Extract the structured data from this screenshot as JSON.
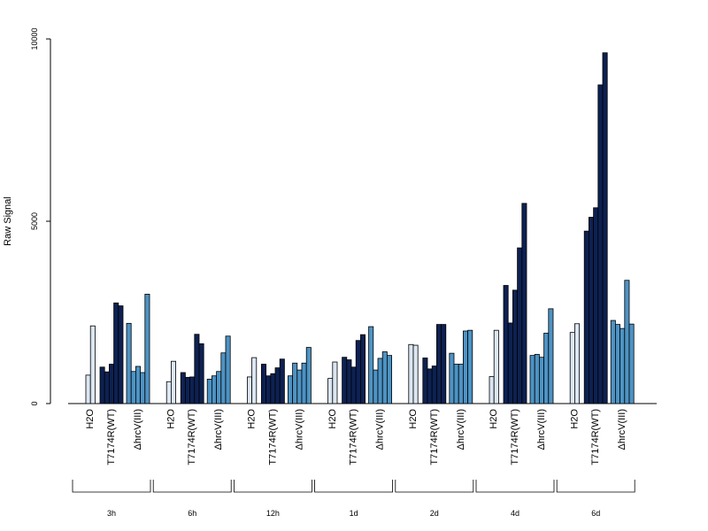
{
  "chart_data": {
    "type": "bar",
    "ylabel": "Raw Signal",
    "xlabel": "",
    "ylim": [
      0,
      10000
    ],
    "yticks": [
      0,
      5000,
      10000
    ],
    "timepoints": [
      "3h",
      "6h",
      "12h",
      "1d",
      "2d",
      "4d",
      "6d"
    ],
    "conditions": [
      {
        "name": "H2O",
        "color": "#dbe6f3"
      },
      {
        "name": "T7174R(WT)",
        "color": "#0d2152"
      },
      {
        "name": "ΔhrcV(III)",
        "color": "#4d93c4"
      }
    ],
    "groups": [
      {
        "time": "3h",
        "H2O": [
          780,
          2130
        ],
        "T7174R(WT)": [
          1000,
          870,
          1080,
          2760,
          2680
        ],
        "ΔhrcV(III)": [
          2200,
          880,
          1020,
          850,
          3000
        ]
      },
      {
        "time": "6h",
        "H2O": [
          600,
          1160
        ],
        "T7174R(WT)": [
          850,
          720,
          730,
          1900,
          1640
        ],
        "ΔhrcV(III)": [
          670,
          760,
          880,
          1390,
          1850
        ]
      },
      {
        "time": "12h",
        "H2O": [
          730,
          1260
        ],
        "T7174R(WT)": [
          1080,
          760,
          820,
          980,
          1220
        ],
        "ΔhrcV(III)": [
          760,
          1110,
          920,
          1110,
          1540
        ]
      },
      {
        "time": "1d",
        "H2O": [
          690,
          1140
        ],
        "T7174R(WT)": [
          1270,
          1200,
          1000,
          1730,
          1890
        ],
        "ΔhrcV(III)": [
          2110,
          920,
          1240,
          1420,
          1320
        ]
      },
      {
        "time": "2d",
        "H2O": [
          1620,
          1600
        ],
        "T7174R(WT)": [
          1250,
          950,
          1030,
          2170,
          2170
        ],
        "ΔhrcV(III)": [
          1380,
          1080,
          1080,
          1990,
          2010
        ]
      },
      {
        "time": "4d",
        "H2O": [
          740,
          2010
        ],
        "T7174R(WT)": [
          3240,
          2210,
          3110,
          4270,
          5490
        ],
        "ΔhrcV(III)": [
          1320,
          1350,
          1270,
          1930,
          2600
        ]
      },
      {
        "time": "6d",
        "H2O": [
          1950,
          2190
        ],
        "T7174R(WT)": [
          4730,
          5110,
          5370,
          8740,
          9620
        ],
        "ΔhrcV(III)": [
          2280,
          2170,
          2060,
          3380,
          2180
        ]
      }
    ]
  }
}
